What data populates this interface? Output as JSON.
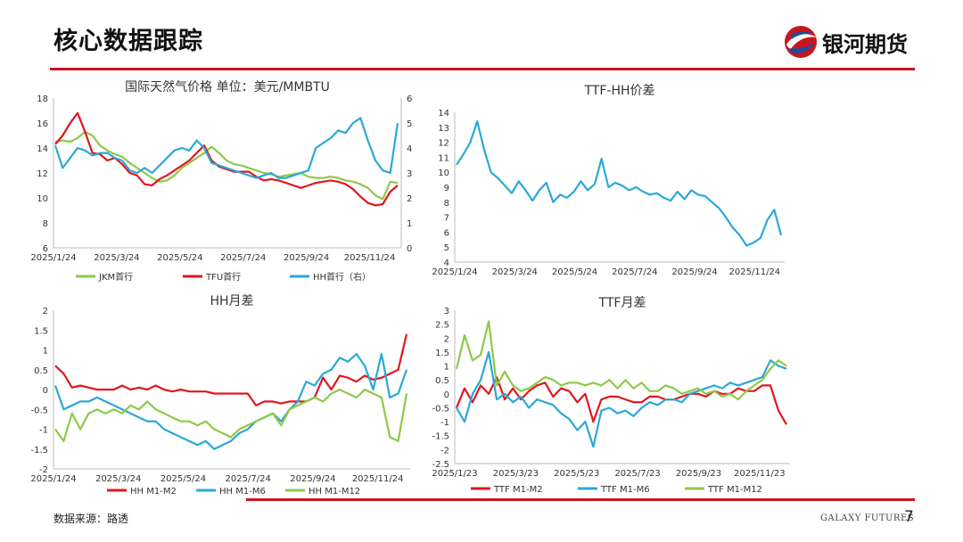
{
  "header": {
    "title": "核心数据跟踪",
    "brand": "银河期货"
  },
  "footer": {
    "source": "数据来源：路透",
    "brand_en": "GALAXY FUTURES",
    "page": "7"
  },
  "colors": {
    "accent": "#c8161d",
    "series_red": "#e0171f",
    "series_blue": "#2aa9d6",
    "series_green": "#8fc84a"
  },
  "chart_data": [
    {
      "type": "line",
      "title": "国际天然气价格   单位：美元/MMBTU",
      "x_ticks": [
        "2025/1/24",
        "2025/3/24",
        "2025/5/24",
        "2025/7/24",
        "2025/9/24",
        "2025/11/24"
      ],
      "ylim": [
        6,
        18
      ],
      "y_ticks": [
        6,
        8,
        10,
        12,
        14,
        16,
        18
      ],
      "y2lim": [
        0,
        6
      ],
      "y2_ticks": [
        0,
        1,
        2,
        3,
        4,
        5,
        6
      ],
      "legend": "bottom",
      "series": [
        {
          "name": "JKM首行",
          "color": "green",
          "axis": "left",
          "values": [
            14.5,
            14.6,
            14.5,
            14.8,
            15.3,
            15.0,
            14.2,
            13.8,
            13.5,
            13.3,
            12.8,
            12.4,
            12.0,
            11.6,
            11.3,
            11.4,
            11.8,
            12.4,
            12.8,
            13.2,
            13.6,
            14.1,
            13.6,
            13.0,
            12.7,
            12.6,
            12.4,
            12.2,
            12.0,
            11.9,
            11.7,
            11.8,
            11.9,
            12.0,
            11.7,
            11.6,
            11.6,
            11.7,
            11.6,
            11.4,
            11.3,
            11.1,
            10.8,
            10.2,
            9.9,
            11.3,
            11.2
          ]
        },
        {
          "name": "TFU首行",
          "color": "red",
          "axis": "left",
          "values": [
            14.3,
            15.0,
            16.0,
            16.8,
            15.3,
            13.6,
            13.5,
            13.0,
            13.2,
            12.7,
            12.0,
            11.8,
            11.1,
            11.0,
            11.5,
            11.8,
            12.2,
            12.6,
            13.0,
            13.6,
            14.2,
            13.0,
            12.5,
            12.3,
            12.1,
            12.1,
            12.1,
            11.7,
            11.4,
            11.5,
            11.4,
            11.2,
            11.0,
            10.8,
            11.0,
            11.2,
            11.3,
            11.4,
            11.3,
            11.1,
            10.7,
            10.1,
            9.6,
            9.4,
            9.5,
            10.5,
            11.0
          ]
        },
        {
          "name": "HH首行（右）",
          "color": "blue",
          "axis": "right",
          "values": [
            4.1,
            3.2,
            3.6,
            4.0,
            3.9,
            3.7,
            3.8,
            3.8,
            3.6,
            3.5,
            3.1,
            3.0,
            3.2,
            3.0,
            3.3,
            3.6,
            3.9,
            4.0,
            3.9,
            4.3,
            4.0,
            3.4,
            3.3,
            3.2,
            3.1,
            3.0,
            2.9,
            2.8,
            2.9,
            3.0,
            2.8,
            2.8,
            2.9,
            3.0,
            3.1,
            4.0,
            4.2,
            4.4,
            4.7,
            4.6,
            5.0,
            5.2,
            4.3,
            3.5,
            3.1,
            3.0,
            5.0
          ]
        }
      ]
    },
    {
      "type": "line",
      "title": "TTF-HH价差",
      "x_ticks": [
        "2025/1/24",
        "2025/3/24",
        "2025/5/24",
        "2025/7/24",
        "2025/9/24",
        "2025/11/24"
      ],
      "ylim": [
        4,
        14
      ],
      "y_ticks": [
        4,
        5,
        6,
        7,
        8,
        9,
        10,
        11,
        12,
        13,
        14
      ],
      "series": [
        {
          "name": "TTF-HH价差",
          "color": "blue",
          "values": [
            10.5,
            11.2,
            12.0,
            13.4,
            11.5,
            10.0,
            9.6,
            9.1,
            8.6,
            9.4,
            8.8,
            8.1,
            8.8,
            9.3,
            8.0,
            8.5,
            8.3,
            8.7,
            9.4,
            8.8,
            9.2,
            10.9,
            9.0,
            9.3,
            9.1,
            8.8,
            9.0,
            8.7,
            8.5,
            8.6,
            8.3,
            8.1,
            8.7,
            8.2,
            8.8,
            8.5,
            8.4,
            8.0,
            7.6,
            7.0,
            6.3,
            5.8,
            5.1,
            5.3,
            5.6,
            6.8,
            7.5,
            5.8
          ]
        }
      ]
    },
    {
      "type": "line",
      "title": "HH月差",
      "x_ticks": [
        "2025/1/24",
        "2025/3/24",
        "2025/5/24",
        "2025/7/24",
        "2025/9/24",
        "2025/11/24"
      ],
      "ylim": [
        -2,
        2
      ],
      "y_ticks": [
        -2,
        -1.5,
        -1,
        -0.5,
        0,
        0.5,
        1,
        1.5,
        2
      ],
      "legend": "bottom",
      "series": [
        {
          "name": "HH M1-M2",
          "color": "red",
          "values": [
            0.6,
            0.4,
            0.05,
            0.1,
            0.05,
            0.0,
            0.0,
            0.0,
            0.1,
            0.0,
            0.05,
            0.0,
            0.1,
            0.0,
            -0.05,
            0.0,
            -0.05,
            -0.05,
            -0.05,
            -0.1,
            -0.1,
            -0.1,
            -0.1,
            -0.1,
            -0.4,
            -0.3,
            -0.3,
            -0.35,
            -0.3,
            -0.3,
            -0.3,
            -0.2,
            0.3,
            0.0,
            0.35,
            0.3,
            0.2,
            0.35,
            0.25,
            0.3,
            0.4,
            0.5,
            1.4
          ]
        },
        {
          "name": "HH M1-M6",
          "color": "blue",
          "values": [
            0.1,
            -0.5,
            -0.4,
            -0.3,
            -0.3,
            -0.2,
            -0.3,
            -0.4,
            -0.5,
            -0.6,
            -0.7,
            -0.8,
            -0.8,
            -1.0,
            -1.1,
            -1.2,
            -1.3,
            -1.4,
            -1.3,
            -1.5,
            -1.4,
            -1.3,
            -1.1,
            -1.0,
            -0.8,
            -0.7,
            -0.6,
            -0.8,
            -0.5,
            -0.3,
            0.2,
            0.1,
            0.4,
            0.5,
            0.8,
            0.7,
            0.9,
            0.6,
            0.0,
            0.9,
            -0.2,
            -0.1,
            0.5
          ]
        },
        {
          "name": "HH M1-M12",
          "color": "green",
          "values": [
            -1.0,
            -1.3,
            -0.6,
            -1.0,
            -0.6,
            -0.5,
            -0.6,
            -0.5,
            -0.6,
            -0.4,
            -0.5,
            -0.3,
            -0.5,
            -0.6,
            -0.7,
            -0.8,
            -0.8,
            -0.9,
            -0.8,
            -1.0,
            -1.1,
            -1.2,
            -1.0,
            -0.9,
            -0.8,
            -0.7,
            -0.6,
            -0.9,
            -0.5,
            -0.4,
            -0.3,
            -0.2,
            -0.3,
            -0.1,
            0.0,
            -0.1,
            -0.2,
            0.0,
            -0.1,
            -0.2,
            -1.2,
            -1.3,
            -0.1
          ]
        }
      ]
    },
    {
      "type": "line",
      "title": "TTF月差",
      "x_ticks": [
        "2025/1/23",
        "2025/3/23",
        "2025/5/23",
        "2025/7/23",
        "2025/9/23",
        "2025/11/23"
      ],
      "ylim": [
        -2.5,
        3
      ],
      "y_ticks": [
        -2.5,
        -2,
        -1.5,
        -1,
        -0.5,
        0,
        0.5,
        1,
        1.5,
        2,
        2.5,
        3
      ],
      "legend": "bottom",
      "series": [
        {
          "name": "TTF M1-M2",
          "color": "red",
          "values": [
            -0.5,
            0.2,
            -0.3,
            0.3,
            0.0,
            0.6,
            -0.2,
            0.2,
            -0.2,
            0.1,
            0.3,
            0.4,
            -0.1,
            0.2,
            0.1,
            -0.3,
            0.0,
            -1.0,
            -0.2,
            -0.1,
            -0.1,
            -0.2,
            -0.3,
            -0.3,
            -0.1,
            -0.1,
            -0.2,
            -0.2,
            -0.1,
            0.0,
            0.0,
            -0.1,
            0.1,
            0.0,
            0.0,
            0.2,
            0.1,
            0.1,
            0.3,
            0.3,
            -0.6,
            -1.1
          ]
        },
        {
          "name": "TTF M1-M6",
          "color": "blue",
          "values": [
            -0.5,
            -1.0,
            0.0,
            0.5,
            1.5,
            -0.2,
            0.0,
            -0.3,
            -0.1,
            -0.5,
            -0.2,
            -0.3,
            -0.4,
            -0.7,
            -0.9,
            -1.3,
            -1.0,
            -1.9,
            -0.6,
            -0.5,
            -0.7,
            -0.6,
            -0.8,
            -0.5,
            -0.3,
            -0.4,
            -0.2,
            -0.2,
            -0.3,
            0.0,
            0.1,
            0.2,
            0.3,
            0.2,
            0.4,
            0.3,
            0.4,
            0.5,
            0.6,
            1.2,
            1.0,
            0.9
          ]
        },
        {
          "name": "TTF M1-M12",
          "color": "green",
          "values": [
            0.9,
            2.1,
            1.2,
            1.4,
            2.6,
            0.3,
            0.8,
            0.3,
            0.1,
            0.2,
            0.4,
            0.6,
            0.5,
            0.3,
            0.4,
            0.4,
            0.3,
            0.4,
            0.3,
            0.5,
            0.2,
            0.5,
            0.2,
            0.4,
            0.1,
            0.1,
            0.3,
            0.2,
            0.0,
            0.1,
            0.2,
            0.0,
            0.1,
            -0.1,
            0.0,
            -0.2,
            0.1,
            0.3,
            0.5,
            0.9,
            1.2,
            1.0
          ]
        }
      ]
    }
  ]
}
